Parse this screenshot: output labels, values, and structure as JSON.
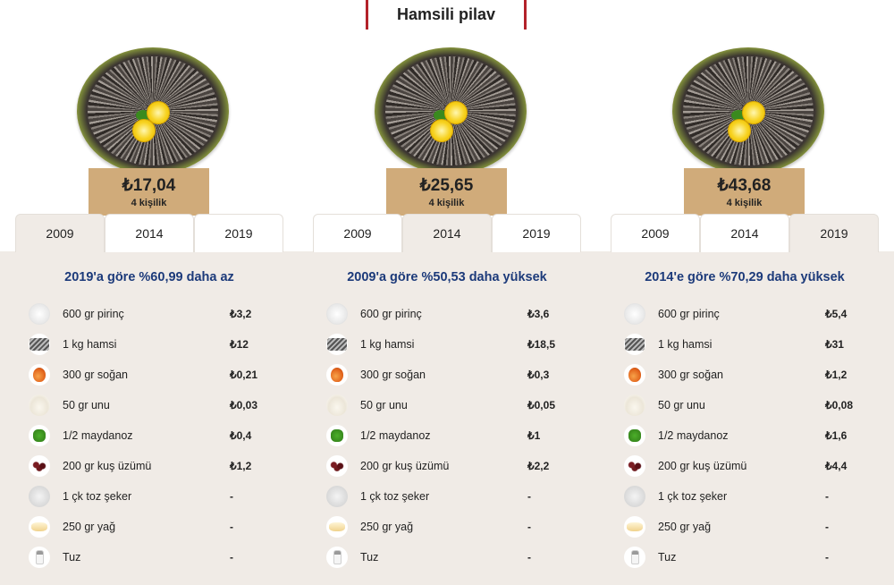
{
  "title": "Hamsili pilav",
  "columns": [
    {
      "price": "₺17,04",
      "persons": "4 kişilik",
      "tabs": [
        "2009",
        "2014",
        "2019"
      ],
      "active_tab": 0,
      "comparison": "2019'a göre %60,99 daha az",
      "ingredients": [
        {
          "name": "600 gr pirinç",
          "price": "₺3,2",
          "icon": "rice-icon"
        },
        {
          "name": "1 kg hamsi",
          "price": "₺12",
          "icon": "anchovy-icon"
        },
        {
          "name": "300 gr soğan",
          "price": "₺0,21",
          "icon": "onion-icon"
        },
        {
          "name": "50 gr unu",
          "price": "₺0,03",
          "icon": "flour-icon"
        },
        {
          "name": "1/2 maydanoz",
          "price": "₺0,4",
          "icon": "parsley-icon"
        },
        {
          "name": "200 gr kuş üzümü",
          "price": "₺1,2",
          "icon": "currant-icon"
        },
        {
          "name": "1 çk toz şeker",
          "price": "-",
          "icon": "sugar-icon"
        },
        {
          "name": "250 gr yağ",
          "price": "-",
          "icon": "butter-icon"
        },
        {
          "name": "Tuz",
          "price": "-",
          "icon": "salt-icon"
        }
      ]
    },
    {
      "price": "₺25,65",
      "persons": "4 kişilik",
      "tabs": [
        "2009",
        "2014",
        "2019"
      ],
      "active_tab": 1,
      "comparison": "2009'a göre %50,53 daha yüksek",
      "ingredients": [
        {
          "name": "600 gr pirinç",
          "price": "₺3,6",
          "icon": "rice-icon"
        },
        {
          "name": "1 kg hamsi",
          "price": "₺18,5",
          "icon": "anchovy-icon"
        },
        {
          "name": "300 gr soğan",
          "price": "₺0,3",
          "icon": "onion-icon"
        },
        {
          "name": "50 gr unu",
          "price": "₺0,05",
          "icon": "flour-icon"
        },
        {
          "name": "1/2 maydanoz",
          "price": "₺1",
          "icon": "parsley-icon"
        },
        {
          "name": "200 gr kuş üzümü",
          "price": "₺2,2",
          "icon": "currant-icon"
        },
        {
          "name": "1 çk toz şeker",
          "price": "-",
          "icon": "sugar-icon"
        },
        {
          "name": "250 gr yağ",
          "price": "-",
          "icon": "butter-icon"
        },
        {
          "name": "Tuz",
          "price": "-",
          "icon": "salt-icon"
        }
      ]
    },
    {
      "price": "₺43,68",
      "persons": "4 kişilik",
      "tabs": [
        "2009",
        "2014",
        "2019"
      ],
      "active_tab": 2,
      "comparison": "2014'e göre %70,29 daha yüksek",
      "ingredients": [
        {
          "name": "600 gr pirinç",
          "price": "₺5,4",
          "icon": "rice-icon"
        },
        {
          "name": "1 kg hamsi",
          "price": "₺31",
          "icon": "anchovy-icon"
        },
        {
          "name": "300 gr soğan",
          "price": "₺1,2",
          "icon": "onion-icon"
        },
        {
          "name": "50 gr unu",
          "price": "₺0,08",
          "icon": "flour-icon"
        },
        {
          "name": "1/2 maydanoz",
          "price": "₺1,6",
          "icon": "parsley-icon"
        },
        {
          "name": "200 gr kuş üzümü",
          "price": "₺4,4",
          "icon": "currant-icon"
        },
        {
          "name": "1 çk toz şeker",
          "price": "-",
          "icon": "sugar-icon"
        },
        {
          "name": "250 gr yağ",
          "price": "-",
          "icon": "butter-icon"
        },
        {
          "name": "Tuz",
          "price": "-",
          "icon": "salt-icon"
        }
      ]
    }
  ],
  "colors": {
    "title_border": "#b3222a",
    "price_box": "#d0ab7a",
    "comparison_text": "#1c3a7a",
    "panel_bg": "#f0ebe6"
  }
}
